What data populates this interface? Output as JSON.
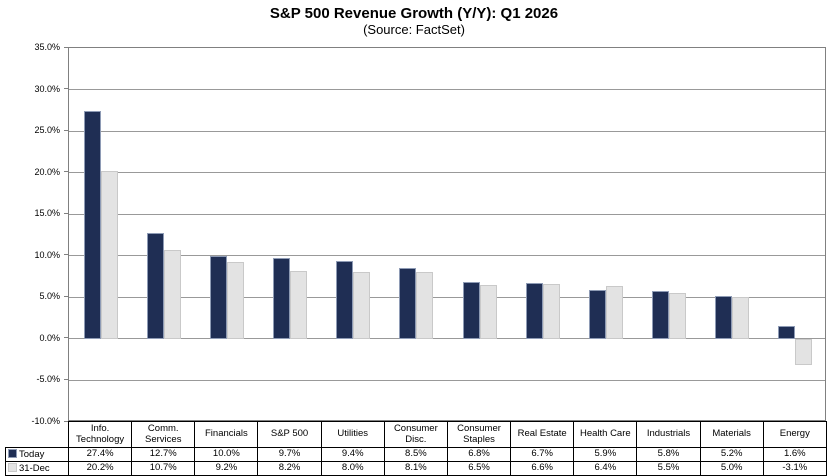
{
  "chart_data": {
    "type": "bar",
    "title": "S&P 500 Revenue Growth (Y/Y): Q1 2026",
    "subtitle": "(Source: FactSet)",
    "categories": [
      "Info. Technology",
      "Comm. Services",
      "Financials",
      "S&P 500",
      "Utilities",
      "Consumer Disc.",
      "Consumer Staples",
      "Real Estate",
      "Health Care",
      "Industrials",
      "Materials",
      "Energy"
    ],
    "series": [
      {
        "name": "Today",
        "color": "#1F2E54",
        "border_color": "#8E9BB5",
        "values": [
          27.4,
          12.7,
          10.0,
          9.7,
          9.4,
          8.5,
          6.8,
          6.7,
          5.9,
          5.8,
          5.2,
          1.6
        ]
      },
      {
        "name": "31-Dec",
        "color": "#E3E3E3",
        "border_color": "#C9C9C9",
        "values": [
          20.2,
          10.7,
          9.2,
          8.2,
          8.0,
          8.1,
          6.5,
          6.6,
          6.4,
          5.5,
          5.0,
          -3.1
        ]
      }
    ],
    "ylim": [
      -10,
      35
    ],
    "ytick_step": 5,
    "ytick_labels": [
      "35.0%",
      "30.0%",
      "25.0%",
      "20.0%",
      "15.0%",
      "10.0%",
      "5.0%",
      "0.0%",
      "-5.0%",
      "-10.0%"
    ],
    "value_suffix": "%",
    "grid": true,
    "gridline_color": "#999999",
    "legend_position": "table-left"
  }
}
